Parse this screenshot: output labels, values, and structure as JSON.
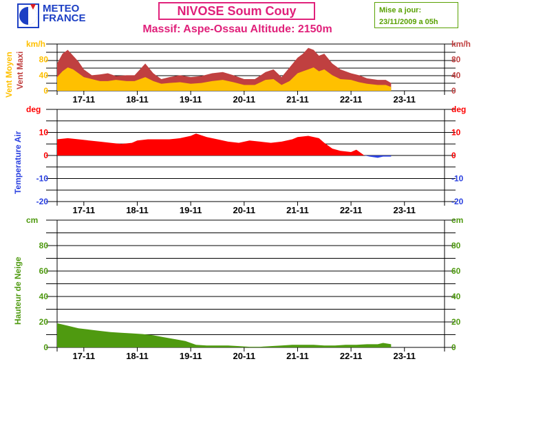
{
  "header": {
    "logo_line1": "METEO",
    "logo_line2": "FRANCE",
    "title": "NIVOSE Soum Couy",
    "subtitle": "Massif: Aspe-Ossau Altitude: 2150m",
    "update_line1": "Mise a jour:",
    "update_line2": "23/11/2009 a 05h"
  },
  "colors": {
    "wind_avg": "#ffc000",
    "wind_max": "#c04040",
    "temp_pos": "#ff0000",
    "temp_neg": "#2a40e0",
    "snow": "#4f9a10",
    "title": "#e0207a",
    "update": "#58a000"
  },
  "chart_data": [
    {
      "type": "area",
      "panel": "wind",
      "unit": "km/h",
      "ylabel_left_1": "Vent Moyen",
      "ylabel_left_2": "Vent Maxi",
      "unit_color": "#c04040",
      "yticks": [
        0,
        40,
        80
      ],
      "ylim": [
        0,
        120
      ],
      "xlim": [
        16.5,
        23.75
      ],
      "categories": [
        "17-11",
        "18-11",
        "19-11",
        "20-11",
        "21-11",
        "22-11",
        "23-11"
      ],
      "series": [
        {
          "name": "Vent Moyen",
          "color": "#ffc000",
          "x": [
            16.5,
            16.6,
            16.7,
            16.8,
            16.9,
            17.0,
            17.15,
            17.3,
            17.45,
            17.6,
            17.8,
            17.95,
            18.05,
            18.15,
            18.3,
            18.45,
            18.6,
            18.8,
            19.0,
            19.2,
            19.4,
            19.6,
            19.8,
            20.0,
            20.2,
            20.4,
            20.55,
            20.7,
            20.85,
            21.0,
            21.1,
            21.2,
            21.3,
            21.4,
            21.5,
            21.65,
            21.8,
            22.0,
            22.15,
            22.3,
            22.5,
            22.65,
            22.75
          ],
          "values": [
            35,
            50,
            60,
            55,
            45,
            35,
            30,
            25,
            25,
            28,
            25,
            25,
            30,
            35,
            25,
            18,
            20,
            22,
            18,
            20,
            25,
            28,
            22,
            15,
            15,
            28,
            30,
            15,
            25,
            45,
            50,
            55,
            60,
            50,
            55,
            40,
            30,
            28,
            22,
            18,
            15,
            15,
            10
          ]
        },
        {
          "name": "Vent Maxi",
          "color": "#c04040",
          "x": [
            16.5,
            16.6,
            16.7,
            16.8,
            16.9,
            17.0,
            17.15,
            17.3,
            17.45,
            17.6,
            17.8,
            17.95,
            18.05,
            18.15,
            18.3,
            18.45,
            18.6,
            18.8,
            19.0,
            19.2,
            19.4,
            19.6,
            19.8,
            20.0,
            20.2,
            20.4,
            20.55,
            20.7,
            20.85,
            21.0,
            21.1,
            21.2,
            21.3,
            21.4,
            21.5,
            21.65,
            21.8,
            22.0,
            22.15,
            22.3,
            22.5,
            22.65,
            22.75
          ],
          "values": [
            70,
            95,
            105,
            90,
            75,
            55,
            40,
            42,
            45,
            38,
            40,
            40,
            55,
            70,
            45,
            30,
            35,
            40,
            35,
            38,
            45,
            48,
            40,
            30,
            30,
            48,
            55,
            35,
            60,
            85,
            95,
            110,
            105,
            90,
            95,
            70,
            55,
            45,
            40,
            32,
            28,
            28,
            20
          ]
        }
      ]
    },
    {
      "type": "area",
      "panel": "temperature",
      "unit": "deg",
      "ylabel": "Temperature Air",
      "unit_color": "#ff0000",
      "yticks": [
        -20,
        -10,
        0,
        10
      ],
      "ylim": [
        -20,
        20
      ],
      "xlim": [
        16.5,
        23.75
      ],
      "categories": [
        "17-11",
        "18-11",
        "19-11",
        "20-11",
        "21-11",
        "22-11",
        "23-11"
      ],
      "series": [
        {
          "name": "Temperature Air",
          "x": [
            16.5,
            16.7,
            16.9,
            17.1,
            17.3,
            17.5,
            17.7,
            17.9,
            18.0,
            18.2,
            18.4,
            18.6,
            18.8,
            19.0,
            19.1,
            19.3,
            19.5,
            19.7,
            19.9,
            20.1,
            20.3,
            20.5,
            20.7,
            20.9,
            21.0,
            21.2,
            21.4,
            21.5,
            21.65,
            21.8,
            22.0,
            22.1,
            22.25,
            22.35,
            22.5,
            22.6,
            22.75
          ],
          "values": [
            7,
            7.5,
            7,
            6.5,
            6,
            5.5,
            5,
            5.5,
            6.5,
            7,
            7,
            7,
            7.5,
            8.5,
            9.5,
            8,
            7,
            6,
            5.5,
            6.5,
            6,
            5.5,
            6,
            7,
            8,
            8.5,
            7.5,
            5.5,
            3,
            2,
            1.5,
            2.5,
            0,
            -0.5,
            -1,
            -0.5,
            -0.5
          ]
        }
      ]
    },
    {
      "type": "area",
      "panel": "snow",
      "unit": "cm",
      "ylabel": "Hauteur de Neige",
      "unit_color": "#4f9a10",
      "yticks": [
        0,
        20,
        40,
        60,
        80
      ],
      "ylim": [
        0,
        100
      ],
      "xlim": [
        16.5,
        23.75
      ],
      "categories": [
        "17-11",
        "18-11",
        "19-11",
        "20-11",
        "21-11",
        "22-11",
        "23-11"
      ],
      "series": [
        {
          "name": "Hauteur de Neige",
          "x": [
            16.5,
            16.7,
            16.9,
            17.1,
            17.3,
            17.5,
            17.7,
            17.9,
            18.1,
            18.3,
            18.5,
            18.7,
            18.9,
            19.0,
            19.1,
            19.3,
            19.5,
            19.7,
            19.9,
            20.1,
            20.3,
            20.5,
            20.7,
            20.9,
            21.1,
            21.3,
            21.5,
            21.7,
            21.9,
            22.1,
            22.3,
            22.5,
            22.6,
            22.75
          ],
          "values": [
            19,
            17,
            15,
            14,
            13,
            12,
            11.5,
            11,
            10.5,
            9.5,
            8,
            6.5,
            5,
            3.5,
            2,
            1.5,
            1.5,
            1.5,
            1,
            0.5,
            0.5,
            1,
            1.5,
            2,
            2,
            2,
            1.5,
            1.5,
            2,
            2,
            2.5,
            2.5,
            3.5,
            2.5
          ]
        }
      ]
    }
  ]
}
